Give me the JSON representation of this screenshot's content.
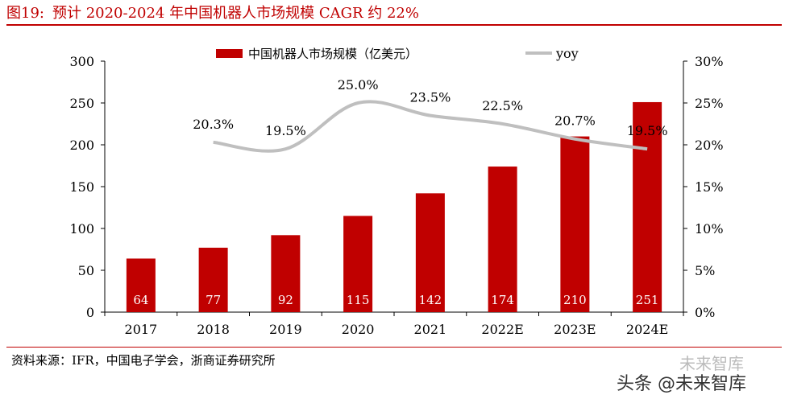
{
  "header": {
    "figure_label": "图19:",
    "title": "预计 2020-2024 年中国机器人市场规模 CAGR 约 22%"
  },
  "chart_data": {
    "type": "bar",
    "categories": [
      "2017",
      "2018",
      "2019",
      "2020",
      "2021",
      "2022E",
      "2023E",
      "2024E"
    ],
    "series": [
      {
        "name": "中国机器人市场规模（亿美元）",
        "kind": "bar",
        "axis": "left",
        "values": [
          64,
          77,
          92,
          115,
          142,
          174,
          210,
          251
        ]
      },
      {
        "name": "yoy",
        "kind": "line",
        "axis": "right",
        "values": [
          null,
          20.3,
          19.5,
          25.0,
          23.5,
          22.5,
          20.7,
          19.5
        ],
        "labels": [
          "",
          "20.3%",
          "19.5%",
          "25.0%",
          "23.5%",
          "22.5%",
          "20.7%",
          "19.5%"
        ]
      }
    ],
    "left_axis": {
      "ylim": [
        0,
        300
      ],
      "ticks": [
        0,
        50,
        100,
        150,
        200,
        250,
        300
      ]
    },
    "right_axis": {
      "ylim": [
        0,
        30
      ],
      "ticks": [
        0,
        5,
        10,
        15,
        20,
        25,
        30
      ],
      "tick_labels": [
        "0%",
        "5%",
        "10%",
        "15%",
        "20%",
        "25%",
        "30%"
      ]
    },
    "legend_position": "top-center",
    "grid": false,
    "colors": {
      "bar": "#c00000",
      "line": "#bfbfbf",
      "accent": "#c00000"
    }
  },
  "footer": {
    "source": "资料来源：IFR，中国电子学会，浙商证券研究所"
  },
  "watermarks": {
    "top": "未来智库",
    "bottom": "头条 @未来智库"
  }
}
